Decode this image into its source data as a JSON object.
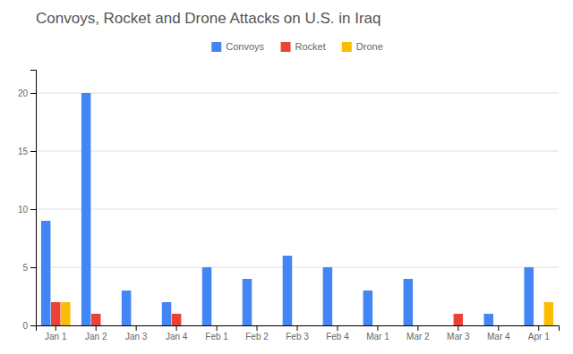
{
  "chart_data": {
    "type": "bar",
    "title": "Convoys, Rocket and Drone Attacks on U.S. in Iraq",
    "categories": [
      "Jan 1",
      "Jan 2",
      "Jan 3",
      "Jan 4",
      "Feb 1",
      "Feb 2",
      "Feb 3",
      "Feb 4",
      "Mar 1",
      "Mar 2",
      "Mar 3",
      "Mar 4",
      "Apr 1"
    ],
    "series": [
      {
        "name": "Convoys",
        "color": "#4285F4",
        "values": [
          9,
          20,
          3,
          2,
          5,
          4,
          6,
          5,
          3,
          4,
          0,
          1,
          5
        ]
      },
      {
        "name": "Rocket",
        "color": "#EA4335",
        "values": [
          2,
          1,
          0,
          1,
          0,
          0,
          0,
          0,
          0,
          0,
          1,
          0,
          0
        ]
      },
      {
        "name": "Drone",
        "color": "#FBBC05",
        "values": [
          2,
          0,
          0,
          0,
          0,
          0,
          0,
          0,
          0,
          0,
          0,
          0,
          2
        ]
      }
    ],
    "ylim": [
      0,
      22
    ],
    "yticks": [
      0,
      5,
      10,
      15,
      20
    ],
    "grid": true,
    "legend": "top"
  }
}
